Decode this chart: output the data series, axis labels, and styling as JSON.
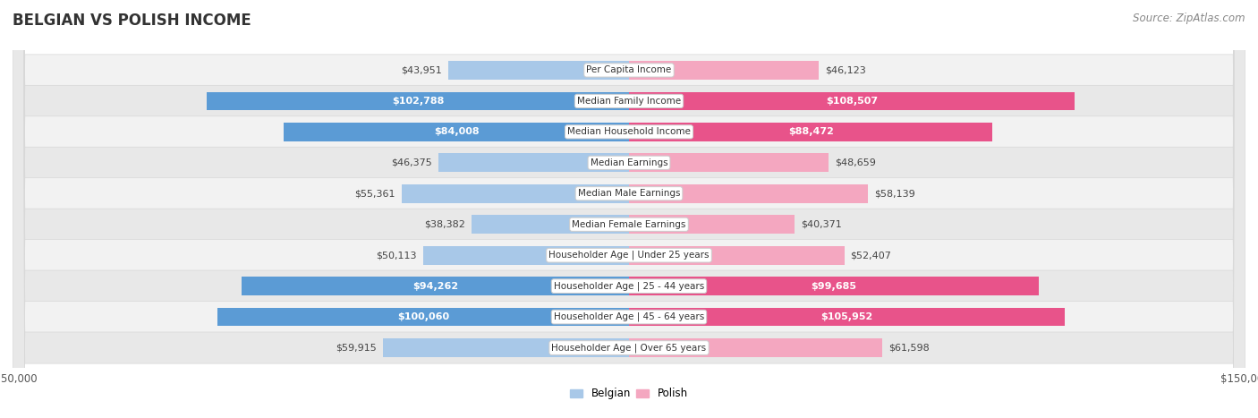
{
  "title": "BELGIAN VS POLISH INCOME",
  "source": "Source: ZipAtlas.com",
  "categories": [
    "Per Capita Income",
    "Median Family Income",
    "Median Household Income",
    "Median Earnings",
    "Median Male Earnings",
    "Median Female Earnings",
    "Householder Age | Under 25 years",
    "Householder Age | 25 - 44 years",
    "Householder Age | 45 - 64 years",
    "Householder Age | Over 65 years"
  ],
  "belgian_values": [
    43951,
    102788,
    84008,
    46375,
    55361,
    38382,
    50113,
    94262,
    100060,
    59915
  ],
  "polish_values": [
    46123,
    108507,
    88472,
    48659,
    58139,
    40371,
    52407,
    99685,
    105952,
    61598
  ],
  "belgian_labels": [
    "$43,951",
    "$102,788",
    "$84,008",
    "$46,375",
    "$55,361",
    "$38,382",
    "$50,113",
    "$94,262",
    "$100,060",
    "$59,915"
  ],
  "polish_labels": [
    "$46,123",
    "$108,507",
    "$88,472",
    "$48,659",
    "$58,139",
    "$40,371",
    "$52,407",
    "$99,685",
    "$105,952",
    "$61,598"
  ],
  "belgian_color_light": "#a8c8e8",
  "belgian_color_dark": "#5b9bd5",
  "polish_color_light": "#f4a7c0",
  "polish_color_dark": "#e8538a",
  "max_value": 150000,
  "bg_color": "#ffffff",
  "row_bg_odd": "#f5f5f5",
  "row_bg_even": "#ebebeb",
  "label_bg": "#ffffff",
  "title_fontsize": 12,
  "source_fontsize": 8.5,
  "bar_label_fontsize": 8,
  "category_fontsize": 7.5,
  "axis_label_fontsize": 8.5,
  "legend_fontsize": 8.5,
  "threshold_belgian": 75000,
  "threshold_polish": 75000
}
